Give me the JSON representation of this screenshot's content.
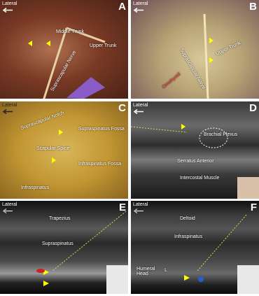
{
  "panels": [
    {
      "letter": "A",
      "orientation": "Lateral",
      "labels": [
        "Middle Trunk",
        "Upper Trunk",
        "Suprascapular Nerve"
      ]
    },
    {
      "letter": "B",
      "orientation": "Lateral",
      "labels": [
        "Upper Trunk",
        "Suprascapular Nerve",
        "Omohyoid"
      ]
    },
    {
      "letter": "C",
      "orientation": "Lateral",
      "labels": [
        "Suprascapular Notch",
        "Supraspinatus Fossa",
        "Scapular Spine",
        "Infraspinatus Fossa",
        "Infraspinatus"
      ]
    },
    {
      "letter": "D",
      "orientation": "Lateral",
      "labels": [
        "Brachial Plexus",
        "Serratus Anterior",
        "Intercostal Muscle"
      ]
    },
    {
      "letter": "E",
      "orientation": "Lateral",
      "labels": [
        "Trapezius",
        "Supraspinatus"
      ]
    },
    {
      "letter": "F",
      "orientation": "Lateral",
      "labels": [
        "Deltoid",
        "Infraspinatus",
        "Humeral Head",
        "L"
      ]
    }
  ]
}
